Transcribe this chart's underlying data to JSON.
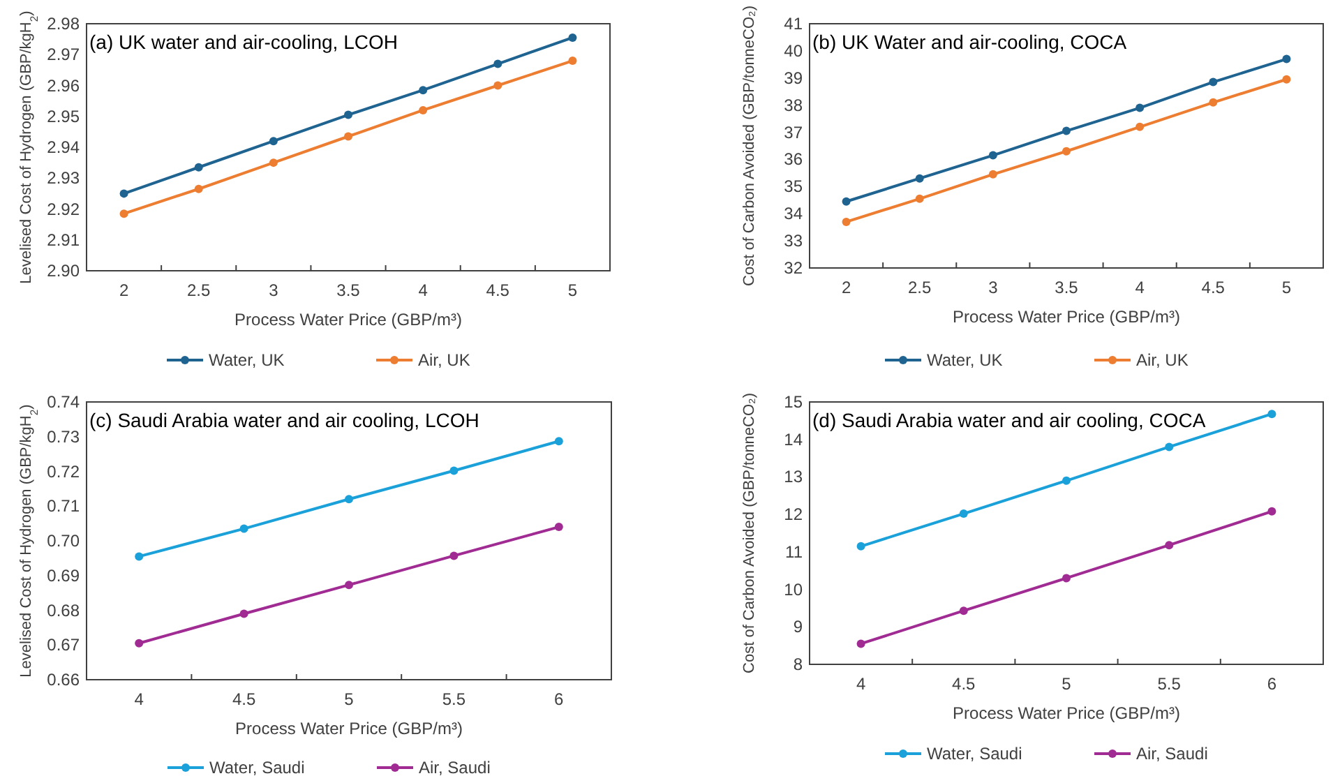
{
  "chart_data": [
    {
      "type": "line",
      "title": "(a) UK water and air-cooling, LCOH",
      "xlabel": "Process Water Price (GBP/m³)",
      "ylabel": "Levelised Cost of Hydrogen (GBP/kgH$_{2}$)",
      "categories": [
        "2",
        "2.5",
        "3",
        "3.5",
        "4",
        "4.5",
        "5"
      ],
      "ylim": [
        2.9,
        2.98
      ],
      "yticks": [
        {
          "value": 2.9,
          "label": "2.90"
        },
        2.91,
        2.92,
        2.93,
        2.94,
        2.95,
        2.96,
        2.97,
        2.98
      ],
      "grid": false,
      "legend": "bottom",
      "marker": "circle",
      "line_style": "solid",
      "series": [
        {
          "name": "Water, UK",
          "color": "#1f6391",
          "values": [
            2.925,
            2.9335,
            2.942,
            2.9505,
            2.9585,
            2.967,
            2.9755
          ]
        },
        {
          "name": "Air, UK",
          "color": "#ed7d31",
          "values": [
            2.9185,
            2.9265,
            2.935,
            2.9435,
            2.952,
            2.96,
            2.968
          ]
        }
      ]
    },
    {
      "type": "line",
      "title": "(b) UK Water and air-cooling, COCA",
      "xlabel": "Process Water Price (GBP/m³)",
      "ylabel": "Cost of Carbon Avoided (GBP/tonneCO₂)",
      "categories": [
        "2",
        "2.5",
        "3",
        "3.5",
        "4",
        "4.5",
        "5"
      ],
      "ylim": [
        32,
        41
      ],
      "yticks": [
        32,
        33,
        34,
        35,
        36,
        37,
        38,
        39,
        40,
        41
      ],
      "grid": false,
      "legend": "bottom",
      "marker": "circle",
      "line_style": "solid",
      "series": [
        {
          "name": "Water, UK",
          "color": "#1f6391",
          "values": [
            34.45,
            35.3,
            36.15,
            37.05,
            37.9,
            38.85,
            39.7
          ]
        },
        {
          "name": "Air, UK",
          "color": "#ed7d31",
          "values": [
            33.7,
            34.55,
            35.45,
            36.3,
            37.2,
            38.1,
            38.95
          ]
        }
      ]
    },
    {
      "type": "line",
      "title": "(c) Saudi Arabia water and air cooling, LCOH",
      "xlabel": "Process Water Price (GBP/m³)",
      "ylabel": "Levelised Cost of Hydrogen (GBP/kgH$_{2}$)",
      "categories": [
        "4",
        "4.5",
        "5",
        "5.5",
        "6"
      ],
      "ylim": [
        0.66,
        0.74
      ],
      "yticks": [
        0.66,
        0.67,
        0.68,
        0.69,
        {
          "value": 0.7,
          "label": "0.70"
        },
        0.71,
        0.72,
        0.73,
        0.74
      ],
      "grid": false,
      "legend": "bottom",
      "marker": "circle",
      "line_style": "solid",
      "series": [
        {
          "name": "Water, Saudi",
          "color": "#1ba1d9",
          "values": [
            0.6955,
            0.7035,
            0.712,
            0.7202,
            0.7287
          ]
        },
        {
          "name": "Air, Saudi",
          "color": "#a02b93",
          "values": [
            0.6705,
            0.679,
            0.6873,
            0.6957,
            0.704
          ]
        }
      ]
    },
    {
      "type": "line",
      "title": "(d) Saudi Arabia water and air cooling, COCA",
      "xlabel": "Process Water Price (GBP/m³)",
      "ylabel": "Cost of Carbon Avoided (GBP/tonneCO₂)",
      "categories": [
        "4",
        "4.5",
        "5",
        "5.5",
        "6"
      ],
      "ylim": [
        8,
        15
      ],
      "yticks": [
        8,
        9,
        10,
        11,
        12,
        13,
        14,
        15
      ],
      "grid": false,
      "legend": "bottom",
      "marker": "circle",
      "line_style": "solid",
      "series": [
        {
          "name": "Water, Saudi",
          "color": "#1ba1d9",
          "values": [
            11.15,
            12.02,
            12.9,
            13.8,
            14.68
          ]
        },
        {
          "name": "Air, Saudi",
          "color": "#a02b93",
          "values": [
            8.55,
            9.43,
            10.3,
            11.18,
            12.08
          ]
        }
      ]
    }
  ]
}
